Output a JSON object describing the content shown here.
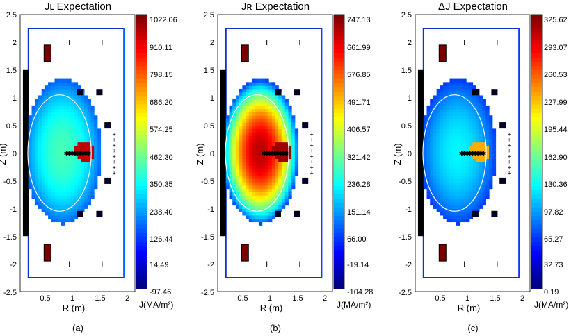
{
  "chart_data": [
    {
      "type": "heatmap",
      "title": "Jʟ Expectation",
      "xlabel": "R (m)",
      "ylabel": "Z (m)",
      "xlim": [
        0,
        2.1
      ],
      "ylim": [
        -2.5,
        2.5
      ],
      "x_ticks": [
        "0.5",
        "1",
        "1.5",
        "2"
      ],
      "y_ticks": [
        "2.5",
        "2",
        "1.5",
        "1",
        "0.5",
        "0",
        "-0.5",
        "-1",
        "-1.5",
        "-2",
        "-2.5"
      ],
      "colorbar_label": "J(MA/m²)",
      "colorbar_ticks": [
        "1022.06",
        "910.11",
        "798.15",
        "686.20",
        "574.25",
        "462.30",
        "350.35",
        "238.40",
        "126.44",
        "14.49",
        "-97.46"
      ],
      "colorbar_range": [
        -97.46,
        1022.06
      ],
      "colormap": "jet",
      "core_value": 400,
      "edge_value": 150,
      "hot_spot_value": 950,
      "panel_label": "(a)"
    },
    {
      "type": "heatmap",
      "title": "Jʀ Expectation",
      "xlabel": "R (m)",
      "ylabel": "Z (m)",
      "xlim": [
        0,
        2.1
      ],
      "ylim": [
        -2.5,
        2.5
      ],
      "x_ticks": [
        "0.5",
        "1",
        "1.5",
        "2"
      ],
      "y_ticks": [
        "2.5",
        "2",
        "1.5",
        "1",
        "0.5",
        "0",
        "-0.5",
        "-1",
        "-1.5",
        "-2",
        "-2.5"
      ],
      "colorbar_label": "J(MA/m²)",
      "colorbar_ticks": [
        "747.13",
        "661.99",
        "576.85",
        "491.71",
        "406.57",
        "321.42",
        "236.28",
        "151.14",
        "66.00",
        "-19.14",
        "-104.28"
      ],
      "colorbar_range": [
        -104.28,
        747.13
      ],
      "colormap": "jet",
      "core_value": 700,
      "edge_value": 60,
      "hot_spot_value": 720,
      "panel_label": "(b)"
    },
    {
      "type": "heatmap",
      "title": "ΔJ Expectation",
      "xlabel": "R (m)",
      "ylabel": "Z (m)",
      "xlim": [
        0,
        2.1
      ],
      "ylim": [
        -2.5,
        2.5
      ],
      "x_ticks": [
        "0.5",
        "1",
        "1.5",
        "2"
      ],
      "y_ticks": [
        "2.5",
        "2",
        "1.5",
        "1",
        "0.5",
        "0",
        "-0.5",
        "-1",
        "-1.5",
        "-2",
        "-2.5"
      ],
      "colorbar_label": "J(MA/m²)",
      "colorbar_ticks": [
        "325.62",
        "293.07",
        "260.53",
        "227.99",
        "195.44",
        "162.90",
        "130.36",
        "97.82",
        "65.27",
        "32.73",
        "0.19"
      ],
      "colorbar_range": [
        0.19,
        325.62
      ],
      "colormap": "jet",
      "core_value": 120,
      "edge_value": 60,
      "hot_spot_value": 230,
      "panel_label": "(c)"
    }
  ]
}
